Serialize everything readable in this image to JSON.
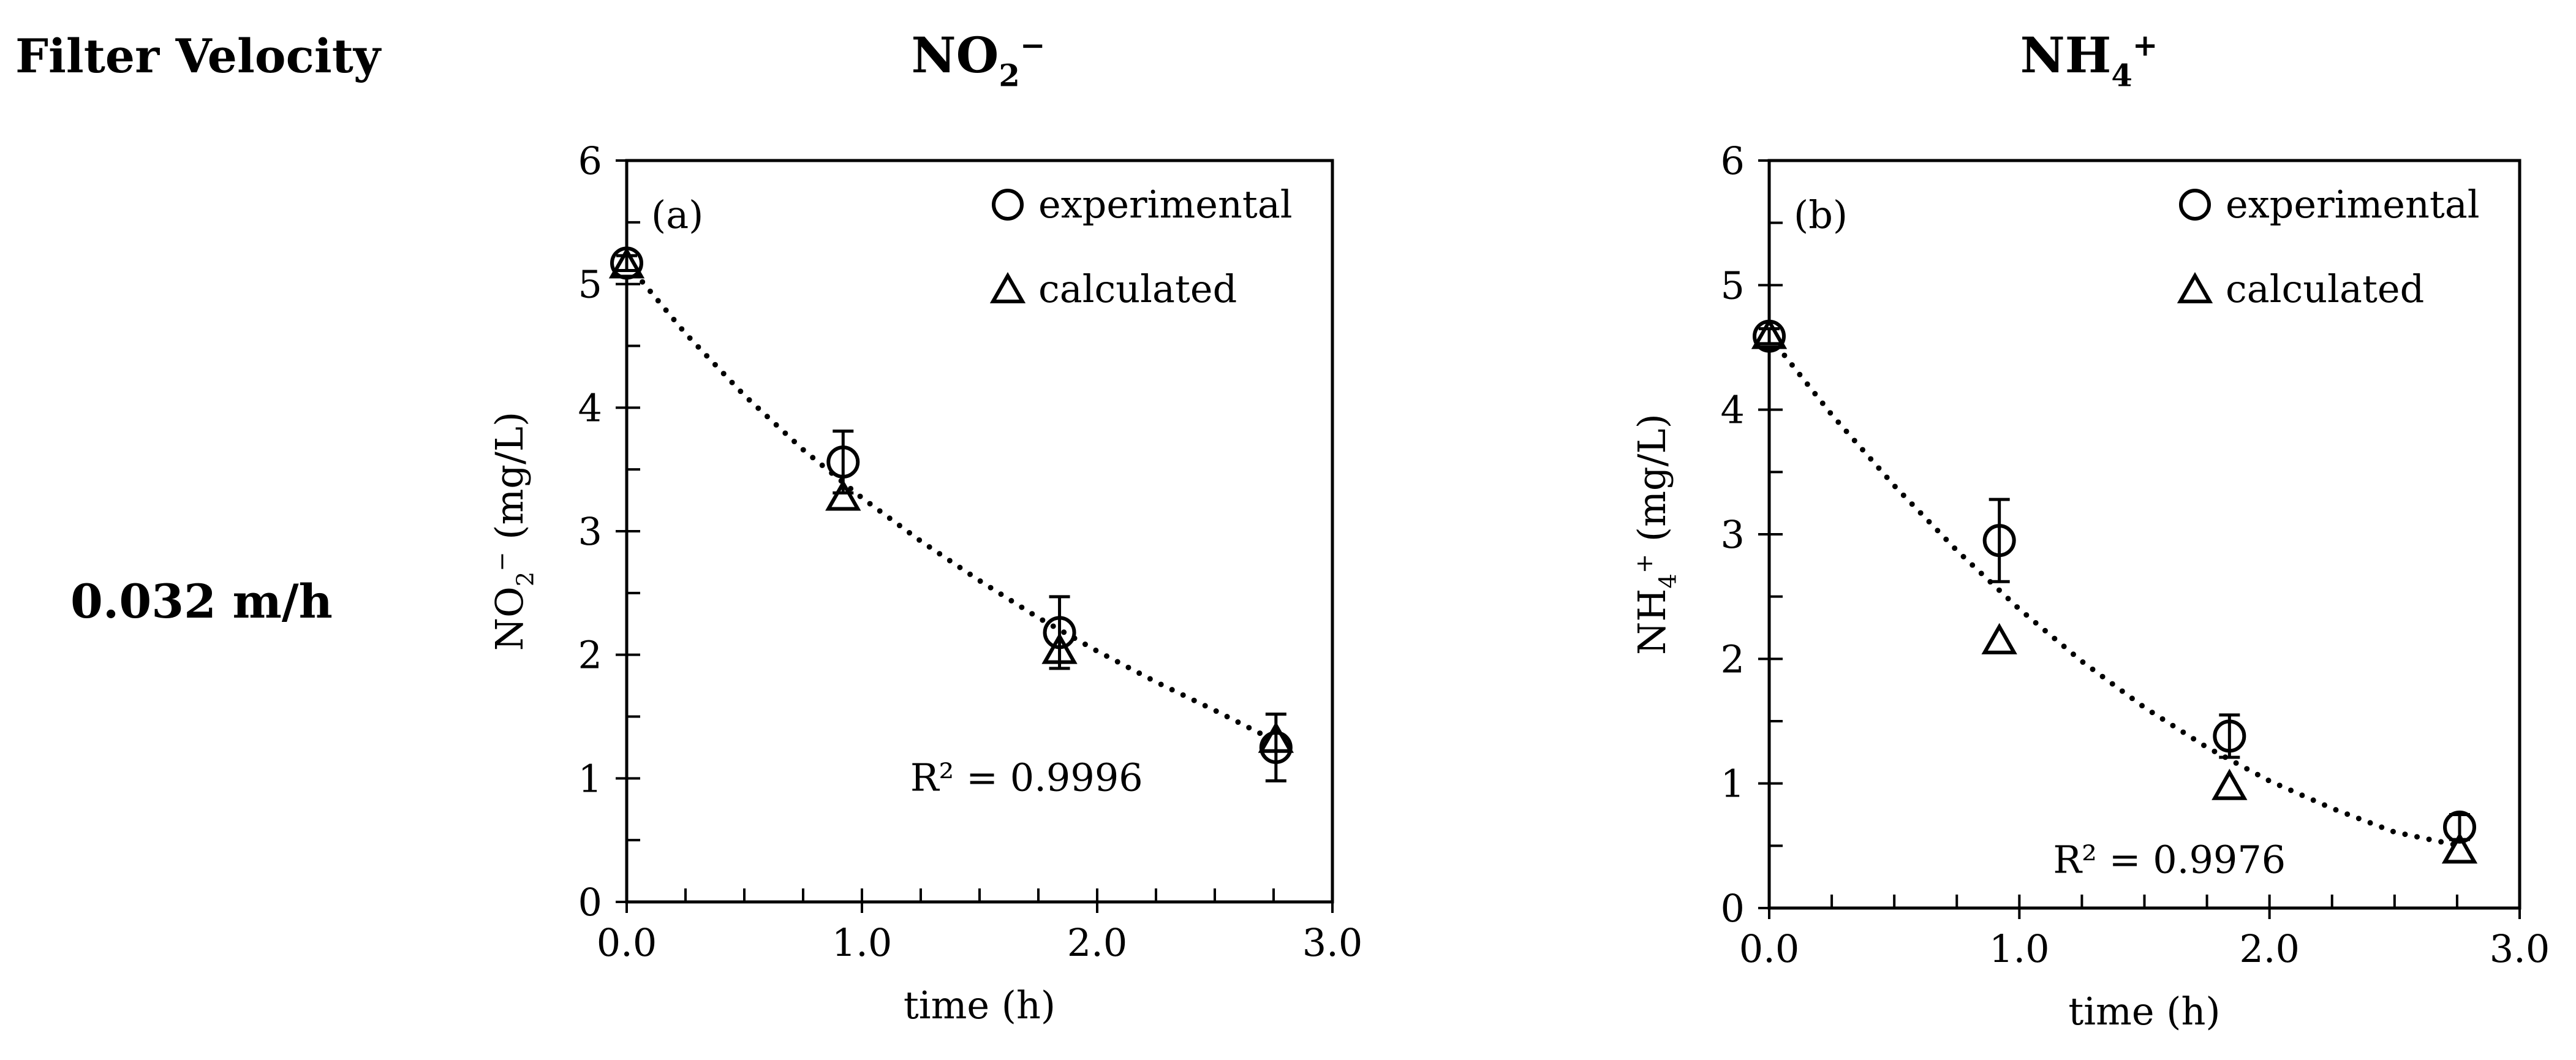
{
  "row_header": {
    "label": "Filter Velocity",
    "value": "0.032 m/h"
  },
  "chart_data": [
    {
      "type": "scatter",
      "column_title": {
        "base": "NO",
        "sub": "2",
        "sup": "−"
      },
      "panel_label": "(a)",
      "xlabel": "time (h)",
      "ylabel": {
        "base": "NO",
        "sub": "2",
        "sup": "−",
        "tail": " (mg/L)"
      },
      "xlim": [
        0,
        3
      ],
      "ylim": [
        0,
        6
      ],
      "x_ticks": [
        0,
        1,
        2,
        3
      ],
      "x_tick_labels": [
        "0.0",
        "1.0",
        "2.0",
        "3.0"
      ],
      "y_ticks": [
        0,
        1,
        2,
        3,
        4,
        5,
        6
      ],
      "y_tick_labels": [
        "0",
        "1",
        "2",
        "3",
        "4",
        "5",
        "6"
      ],
      "x_minor_step": 0.25,
      "y_minor_step": 0.5,
      "legend_position": "top-right",
      "r_squared_label": "R² = 0.9996",
      "series": [
        {
          "name": "experimental",
          "marker": "circle",
          "points": [
            {
              "x": 0.0,
              "y": 5.17,
              "err": 0.06
            },
            {
              "x": 0.92,
              "y": 3.56,
              "err": 0.25
            },
            {
              "x": 1.84,
              "y": 2.18,
              "err": 0.29
            },
            {
              "x": 2.76,
              "y": 1.25,
              "err": 0.27
            }
          ]
        },
        {
          "name": "calculated",
          "marker": "triangle",
          "points": [
            {
              "x": 0.0,
              "y": 5.16
            },
            {
              "x": 0.92,
              "y": 3.28
            },
            {
              "x": 1.84,
              "y": 2.04
            },
            {
              "x": 2.76,
              "y": 1.32
            }
          ]
        },
        {
          "name": "fit",
          "marker": "dotted-line",
          "points": [
            {
              "x": 0.0,
              "y": 5.17
            },
            {
              "x": 0.25,
              "y": 4.6
            },
            {
              "x": 0.5,
              "y": 4.1
            },
            {
              "x": 0.75,
              "y": 3.66
            },
            {
              "x": 1.0,
              "y": 3.27
            },
            {
              "x": 1.25,
              "y": 2.92
            },
            {
              "x": 1.5,
              "y": 2.6
            },
            {
              "x": 1.75,
              "y": 2.3
            },
            {
              "x": 2.0,
              "y": 2.03
            },
            {
              "x": 2.25,
              "y": 1.78
            },
            {
              "x": 2.5,
              "y": 1.55
            },
            {
              "x": 2.76,
              "y": 1.3
            }
          ]
        }
      ]
    },
    {
      "type": "scatter",
      "column_title": {
        "base": "NH",
        "sub": "4",
        "sup": "+"
      },
      "panel_label": "(b)",
      "xlabel": "time (h)",
      "ylabel": {
        "base": "NH",
        "sub": "4",
        "sup": "+",
        "tail": " (mg/L)"
      },
      "xlim": [
        0,
        3
      ],
      "ylim": [
        0,
        6
      ],
      "x_ticks": [
        0,
        1,
        2,
        3
      ],
      "x_tick_labels": [
        "0.0",
        "1.0",
        "2.0",
        "3.0"
      ],
      "y_ticks": [
        0,
        1,
        2,
        3,
        4,
        5,
        6
      ],
      "y_tick_labels": [
        "0",
        "1",
        "2",
        "3",
        "4",
        "5",
        "6"
      ],
      "x_minor_step": 0.25,
      "y_minor_step": 0.5,
      "legend_position": "top-right",
      "r_squared_label": "R² = 0.9976",
      "series": [
        {
          "name": "experimental",
          "marker": "circle",
          "points": [
            {
              "x": 0.0,
              "y": 4.59,
              "err": 0.06
            },
            {
              "x": 0.92,
              "y": 2.95,
              "err": 0.33
            },
            {
              "x": 1.84,
              "y": 1.38,
              "err": 0.17
            },
            {
              "x": 2.76,
              "y": 0.65,
              "err": 0.1
            }
          ]
        },
        {
          "name": "calculated",
          "marker": "triangle",
          "points": [
            {
              "x": 0.0,
              "y": 4.6
            },
            {
              "x": 0.92,
              "y": 2.15
            },
            {
              "x": 1.84,
              "y": 0.98
            },
            {
              "x": 2.76,
              "y": 0.47
            }
          ]
        },
        {
          "name": "fit",
          "marker": "dotted-line",
          "points": [
            {
              "x": 0.0,
              "y": 4.59
            },
            {
              "x": 0.25,
              "y": 3.96
            },
            {
              "x": 0.5,
              "y": 3.39
            },
            {
              "x": 0.75,
              "y": 2.87
            },
            {
              "x": 1.0,
              "y": 2.4
            },
            {
              "x": 1.25,
              "y": 1.98
            },
            {
              "x": 1.5,
              "y": 1.61
            },
            {
              "x": 1.75,
              "y": 1.29
            },
            {
              "x": 2.0,
              "y": 1.02
            },
            {
              "x": 2.25,
              "y": 0.8
            },
            {
              "x": 2.5,
              "y": 0.61
            },
            {
              "x": 2.76,
              "y": 0.5
            }
          ]
        }
      ]
    }
  ]
}
